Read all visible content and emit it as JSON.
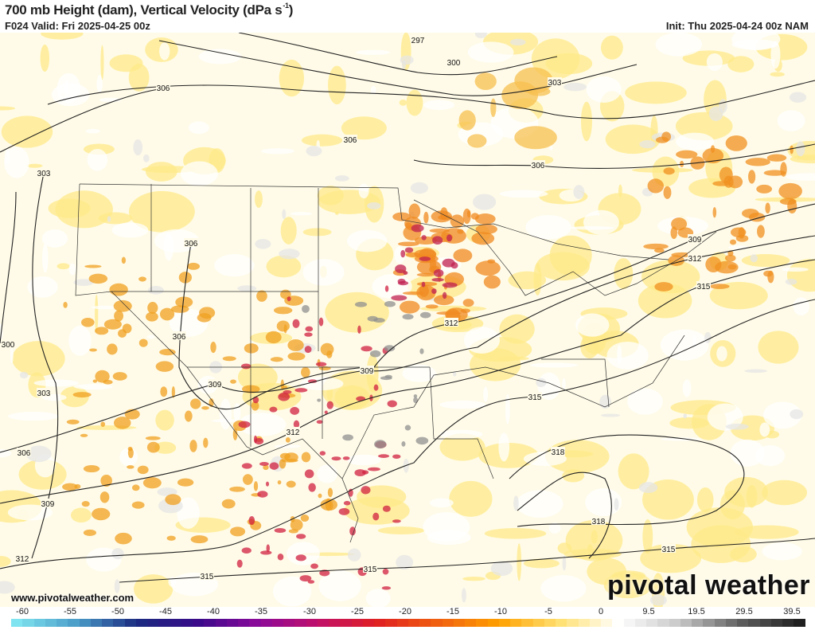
{
  "header": {
    "title": "700 mb Height (dam), Vertical Velocity (dPa s",
    "title_sup": "-1",
    "title_end": ")",
    "valid": "F024 Valid: Fri 2025-04-25 00z",
    "init": "Init: Thu 2025-04-24 00z NAM"
  },
  "footer": {
    "url": "www.pivotalweather.com",
    "logo": "pivotal weather"
  },
  "contour_labels": [
    "297",
    "300",
    "303",
    "306",
    "306",
    "303",
    "306",
    "306",
    "300",
    "303",
    "306",
    "309",
    "312",
    "315",
    "309",
    "312",
    "309",
    "312",
    "306",
    "309",
    "312",
    "315",
    "315",
    "318",
    "318",
    "315",
    "315"
  ],
  "colorbar": {
    "ticks": [
      "-60",
      "-55",
      "-50",
      "-45",
      "-40",
      "-35",
      "-30",
      "-25",
      "-20",
      "-15",
      "-10",
      "-5",
      "0",
      "9.5",
      "19.5",
      "29.5",
      "39.5"
    ],
    "stops": [
      "#7fe3f0",
      "#4a9cc8",
      "#1a2a80",
      "#3a0a8a",
      "#8a0a9a",
      "#c0106a",
      "#e02020",
      "#f06010",
      "#ffa000",
      "#ffe070",
      "#ffffff",
      "#c8c8c8",
      "#606060",
      "#202020"
    ]
  },
  "colors": {
    "ascent": "#e03020",
    "descent": "#909090",
    "background": "#fffbe8"
  }
}
